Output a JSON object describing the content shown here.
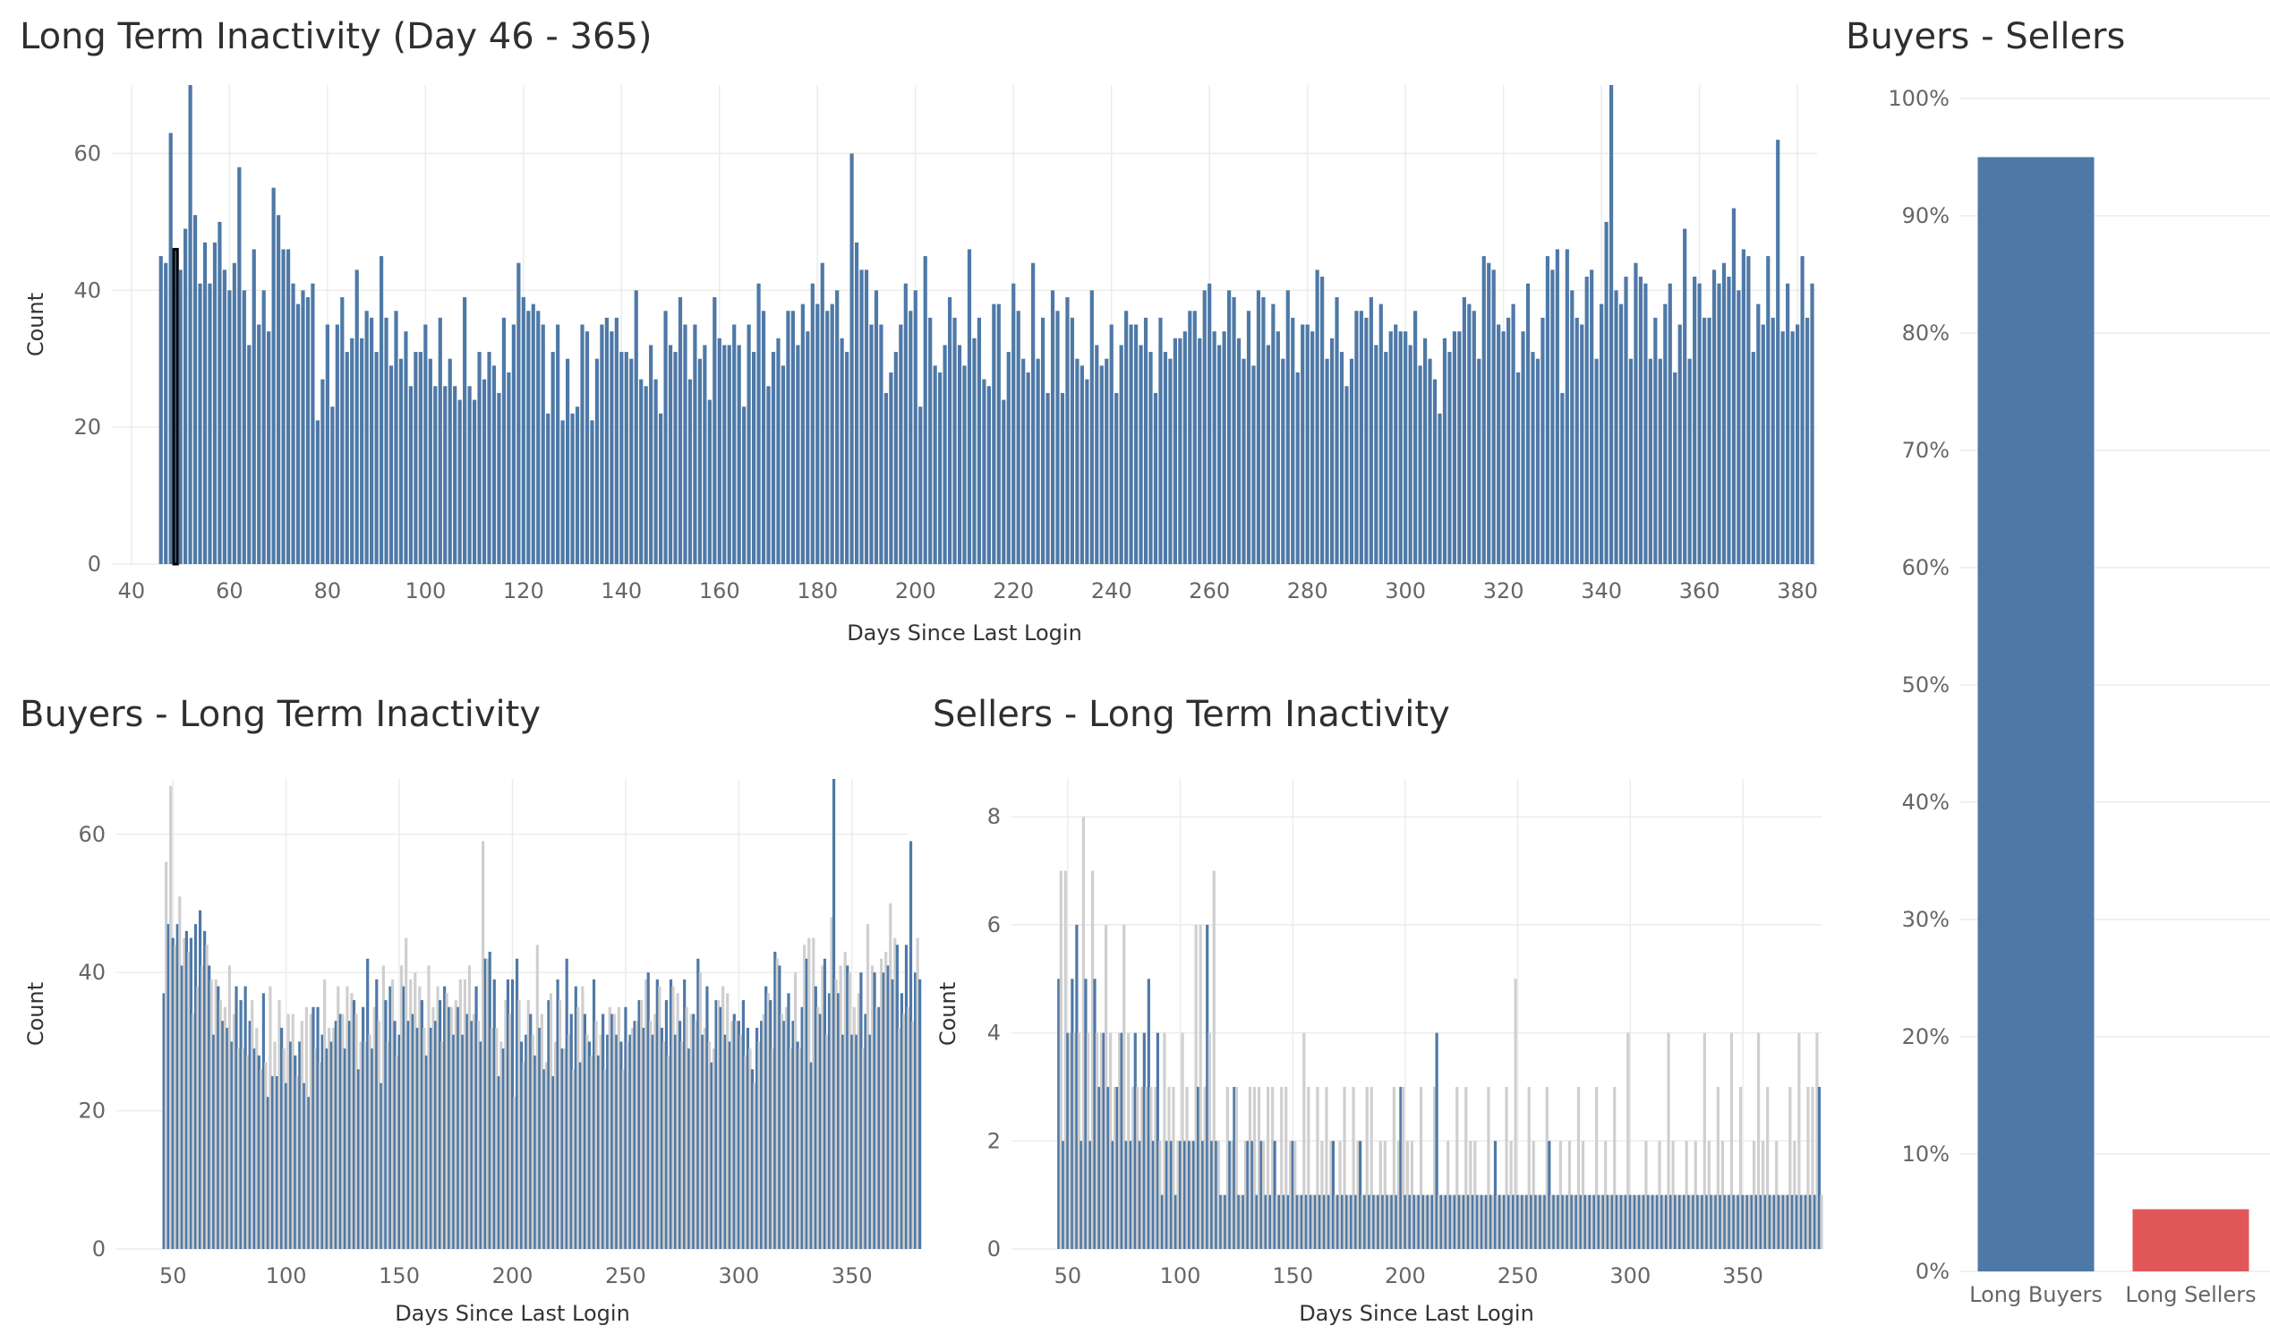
{
  "colors": {
    "blue": "#4e79a7",
    "grey": "#cfcfcf",
    "red": "#e15759",
    "highlight": "#000000"
  },
  "chart_data": [
    {
      "id": "overall",
      "type": "bar",
      "title": "Long Term  Inactivity (Day 46 - 365)",
      "xlabel": "Days Since Last Login",
      "ylabel": "Count",
      "xlim": [
        36,
        384
      ],
      "ylim": [
        0,
        70
      ],
      "xticks": [
        40,
        60,
        80,
        100,
        120,
        140,
        160,
        180,
        200,
        220,
        240,
        260,
        280,
        300,
        320,
        340,
        360,
        380
      ],
      "yticks": [
        0,
        20,
        40,
        60
      ],
      "grid": true,
      "highlight_x": 49,
      "x_start": 46,
      "values": [
        45,
        44,
        63,
        46,
        43,
        49,
        70,
        51,
        41,
        47,
        41,
        47,
        50,
        43,
        40,
        44,
        58,
        40,
        32,
        46,
        35,
        40,
        34,
        55,
        51,
        46,
        46,
        41,
        38,
        40,
        39,
        41,
        21,
        27,
        35,
        23,
        35,
        39,
        31,
        33,
        43,
        33,
        37,
        36,
        31,
        45,
        36,
        29,
        37,
        30,
        34,
        26,
        31,
        31,
        35,
        30,
        26,
        36,
        26,
        30,
        26,
        24,
        39,
        26,
        24,
        31,
        27,
        31,
        29,
        25,
        36,
        28,
        35,
        44,
        39,
        37,
        38,
        37,
        35,
        22,
        31,
        35,
        21,
        30,
        22,
        23,
        35,
        34,
        21,
        30,
        35,
        36,
        34,
        36,
        31,
        31,
        30,
        40,
        27,
        26,
        32,
        27,
        22,
        37,
        32,
        31,
        39,
        35,
        27,
        35,
        30,
        32,
        24,
        39,
        33,
        32,
        32,
        35,
        32,
        23,
        35,
        31,
        41,
        37,
        26,
        31,
        33,
        29,
        37,
        37,
        32,
        38,
        34,
        41,
        38,
        44,
        37,
        38,
        40,
        33,
        31,
        60,
        47,
        43,
        43,
        35,
        40,
        35,
        25,
        28,
        31,
        35,
        41,
        37,
        40,
        23,
        45,
        36,
        29,
        28,
        32,
        39,
        36,
        32,
        29,
        46,
        33,
        36,
        27,
        26,
        38,
        38,
        24,
        31,
        41,
        37,
        30,
        28,
        44,
        30,
        36,
        25,
        40,
        37,
        25,
        39,
        36,
        30,
        29,
        27,
        40,
        32,
        29,
        30,
        35,
        25,
        32,
        37,
        35,
        35,
        32,
        36,
        31,
        25,
        36,
        31,
        30,
        33,
        33,
        34,
        37,
        37,
        33,
        40,
        41,
        34,
        32,
        34,
        40,
        39,
        33,
        30,
        37,
        29,
        40,
        39,
        32,
        38,
        34,
        30,
        40,
        36,
        28,
        35,
        35,
        34,
        43,
        42,
        30,
        33,
        39,
        31,
        26,
        30,
        37,
        37,
        36,
        39,
        32,
        38,
        31,
        34,
        35,
        34,
        34,
        32,
        37,
        29,
        33,
        30,
        27,
        22,
        33,
        31,
        34,
        34,
        39,
        38,
        37,
        30,
        45,
        44,
        43,
        35,
        34,
        36,
        38,
        28,
        34,
        41,
        31,
        30,
        36,
        45,
        43,
        46,
        25,
        46,
        40,
        36,
        35,
        42,
        43,
        30,
        38,
        50,
        43,
        40,
        38,
        42,
        30,
        44,
        42,
        41,
        30,
        36,
        30,
        38,
        41,
        28,
        35,
        49,
        30,
        42,
        41,
        36,
        36,
        43,
        41,
        44,
        42,
        52,
        40,
        46,
        45,
        31,
        38,
        35,
        45,
        36,
        62,
        34,
        41,
        34,
        35,
        45,
        36,
        41
      ],
      "peaks": {
        "52": 70,
        "342": 70
      }
    },
    {
      "id": "buyers",
      "type": "bar",
      "title": "Buyers - Long Term Inactivity",
      "xlabel": "Days Since Last Login",
      "ylabel": "Count",
      "xlim": [
        25,
        375
      ],
      "ylim": [
        0,
        68
      ],
      "xticks": [
        50,
        100,
        150,
        200,
        250,
        300,
        350
      ],
      "yticks": [
        0,
        20,
        40,
        60
      ],
      "grid": true,
      "x_start": 46,
      "series": [
        {
          "name": "",
          "color": "blue",
          "every": 2
        },
        {
          "name": "",
          "color": "grey",
          "every": 2
        }
      ],
      "values": [
        37,
        56,
        47,
        67,
        45,
        44,
        47,
        51,
        41,
        45,
        46,
        43,
        45,
        34,
        47,
        38,
        49,
        41,
        46,
        44,
        41,
        39,
        31,
        39,
        38,
        36,
        33,
        35,
        32,
        41,
        30,
        34,
        38,
        29,
        36,
        29,
        38,
        28,
        33,
        36,
        29,
        32,
        28,
        26,
        37,
        27,
        22,
        38,
        25,
        30,
        25,
        36,
        32,
        29,
        24,
        34,
        30,
        34,
        28,
        25,
        30,
        33,
        24,
        35,
        22,
        34,
        35,
        29,
        35,
        27,
        31,
        39,
        29,
        32,
        30,
        32,
        33,
        38,
        34,
        34,
        29,
        38,
        33,
        37,
        36,
        34,
        26,
        30,
        35,
        30,
        42,
        31,
        29,
        35,
        39,
        33,
        24,
        41,
        36,
        30,
        38,
        39,
        33,
        28,
        31,
        41,
        38,
        45,
        33,
        39,
        34,
        40,
        32,
        38,
        36,
        32,
        28,
        41,
        32,
        35,
        33,
        38,
        36,
        30,
        38,
        37,
        35,
        35,
        31,
        36,
        35,
        39,
        31,
        39,
        34,
        41,
        33,
        34,
        38,
        33,
        30,
        59,
        42,
        42,
        43,
        32,
        39,
        32,
        25,
        30,
        29,
        36,
        39,
        34,
        39,
        22,
        42,
        36,
        30,
        27,
        31,
        36,
        34,
        31,
        28,
        44,
        32,
        34,
        26,
        27,
        36,
        37,
        25,
        30,
        39,
        36,
        29,
        29,
        42,
        31,
        34,
        26,
        38,
        35,
        27,
        38,
        34,
        31,
        30,
        28,
        39,
        33,
        28,
        31,
        34,
        26,
        31,
        35,
        34,
        34,
        31,
        35,
        30,
        26,
        35,
        30,
        31,
        32,
        33,
        33,
        36,
        36,
        32,
        39,
        40,
        33,
        31,
        34,
        39,
        38,
        32,
        30,
        36,
        28,
        39,
        38,
        31,
        37,
        33,
        30,
        39,
        35,
        29,
        34,
        34,
        33,
        42,
        40,
        31,
        32,
        38,
        30,
        27,
        29,
        36,
        36,
        35,
        38,
        31,
        37,
        30,
        33,
        34,
        33,
        33,
        31,
        36,
        28,
        32,
        29,
        26,
        24,
        32,
        30,
        33,
        34,
        38,
        37,
        36,
        29,
        43,
        42,
        41,
        34,
        33,
        35,
        37,
        29,
        33,
        40,
        30,
        29,
        35,
        44,
        42,
        45,
        27,
        45,
        38,
        35,
        34,
        41,
        42,
        31,
        37,
        48,
        42,
        39,
        37,
        41,
        31,
        43,
        41,
        40,
        31,
        35,
        31,
        37,
        40,
        29,
        34,
        47,
        31,
        41,
        40,
        35,
        35,
        42,
        40,
        43,
        41,
        50,
        39,
        45,
        44,
        32,
        37,
        34,
        44,
        35,
        59,
        33,
        40,
        45,
        39
      ],
      "peaks": {
        "342": 68
      }
    },
    {
      "id": "sellers",
      "type": "bar",
      "title": "Sellers - Long Term Inactivity",
      "xlabel": "Days Since Last Login",
      "ylabel": "Count",
      "xlim": [
        25,
        385
      ],
      "ylim": [
        0,
        8.7
      ],
      "xticks": [
        50,
        100,
        150,
        200,
        250,
        300,
        350
      ],
      "yticks": [
        0,
        2,
        4,
        6,
        8
      ],
      "grid": true,
      "x_start": 46,
      "series": [
        {
          "name": "",
          "color": "blue",
          "every": 2
        },
        {
          "name": "",
          "color": "grey",
          "every": 2
        }
      ],
      "values": [
        5,
        7,
        2,
        7,
        4,
        4,
        5,
        4,
        6,
        4,
        2,
        8,
        5,
        4,
        2,
        7,
        5,
        4,
        3,
        4,
        4,
        6,
        3,
        4,
        2,
        3,
        3,
        4,
        4,
        6,
        2,
        4,
        2,
        3,
        4,
        3,
        2,
        3,
        4,
        3,
        5,
        3,
        2,
        3,
        4,
        2,
        1,
        4,
        2,
        3,
        2,
        3,
        1,
        2,
        2,
        4,
        2,
        3,
        2,
        2,
        2,
        6,
        3,
        6,
        2,
        3,
        6,
        4,
        2,
        7,
        2,
        2,
        1,
        1,
        1,
        3,
        2,
        2,
        3,
        3,
        1,
        1,
        1,
        2,
        2,
        3,
        2,
        3,
        1,
        3,
        2,
        2,
        1,
        3,
        1,
        3,
        2,
        1,
        1,
        3,
        1,
        3,
        1,
        2,
        2,
        2,
        1,
        1,
        1,
        4,
        1,
        3,
        1,
        1,
        1,
        3,
        1,
        2,
        1,
        3,
        1,
        2,
        2,
        1,
        1,
        2,
        1,
        3,
        1,
        1,
        1,
        3,
        1,
        2,
        2,
        1,
        1,
        3,
        1,
        3,
        1,
        1,
        1,
        2,
        1,
        2,
        1,
        1,
        1,
        3,
        1,
        2,
        3,
        3,
        1,
        2,
        1,
        2,
        1,
        1,
        1,
        3,
        1,
        1,
        1,
        1,
        1,
        3,
        4,
        1,
        1,
        1,
        1,
        2,
        1,
        1,
        1,
        3,
        1,
        1,
        1,
        3,
        1,
        2,
        1,
        2,
        1,
        1,
        1,
        1,
        1,
        3,
        1,
        1,
        2,
        1,
        1,
        1,
        1,
        3,
        1,
        2,
        1,
        5,
        1,
        1,
        1,
        1,
        1,
        3,
        1,
        2,
        1,
        1,
        1,
        1,
        1,
        3,
        2,
        1,
        1,
        1,
        1,
        2,
        1,
        1,
        1,
        2,
        1,
        1,
        1,
        3,
        1,
        2,
        1,
        1,
        1,
        1,
        1,
        3,
        1,
        1,
        1,
        2,
        1,
        1,
        1,
        3,
        1,
        1,
        1,
        1,
        1,
        4,
        1,
        1,
        1,
        1,
        1,
        1,
        1,
        2,
        1,
        1,
        1,
        1,
        1,
        2,
        1,
        1,
        1,
        4,
        1,
        2,
        1,
        1,
        1,
        1,
        1,
        2,
        1,
        1,
        1,
        2,
        1,
        1,
        1,
        4,
        1,
        2,
        1,
        1,
        1,
        3,
        1,
        2,
        1,
        1,
        1,
        4,
        1,
        1,
        1,
        3,
        1,
        1,
        1,
        1,
        1,
        2,
        1,
        4,
        1,
        2,
        1,
        3,
        1,
        1,
        1,
        2,
        1,
        1,
        1,
        1,
        1,
        3,
        1,
        2,
        1,
        4,
        1,
        1,
        1,
        3,
        1,
        3,
        1,
        4,
        3,
        1
      ],
      "peaks": {}
    },
    {
      "id": "share",
      "type": "bar",
      "title": "Buyers - Sellers",
      "categories": [
        "Long Buyers",
        "Long Sellers"
      ],
      "values": [
        95,
        5.3
      ],
      "value_unit": "%",
      "ylim": [
        0,
        100
      ],
      "yticks": [
        0,
        10,
        20,
        30,
        40,
        50,
        60,
        70,
        80,
        90,
        100
      ],
      "grid": true,
      "bar_colors": [
        "blue",
        "red"
      ]
    }
  ]
}
